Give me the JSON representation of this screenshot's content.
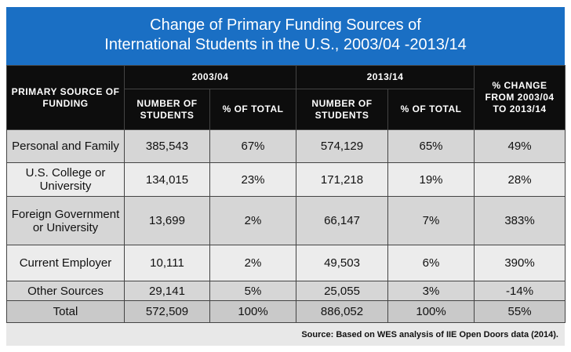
{
  "title": {
    "line1": "Change of Primary Funding Sources of",
    "line2": "International Students in the U.S., 2003/04 -2013/14"
  },
  "headers": {
    "primary_source": "PRIMARY SOURCE OF FUNDING",
    "year1": "2003/04",
    "year2": "2013/14",
    "pct_change": "% CHANGE FROM 2003/04 TO 2013/14",
    "num_students": "NUMBER OF STUDENTS",
    "pct_total": "% OF TOTAL"
  },
  "rows": [
    {
      "source": "Personal and Family",
      "n1": "385,543",
      "p1": "67%",
      "n2": "574,129",
      "p2": "65%",
      "change": "49%"
    },
    {
      "source": "U.S. College or University",
      "n1": "134,015",
      "p1": "23%",
      "n2": "171,218",
      "p2": "19%",
      "change": "28%"
    },
    {
      "source": "Foreign Government or University",
      "n1": "13,699",
      "p1": "2%",
      "n2": "66,147",
      "p2": "7%",
      "change": "383%"
    },
    {
      "source": "Current Employer",
      "n1": "10,111",
      "p1": "2%",
      "n2": "49,503",
      "p2": "6%",
      "change": "390%"
    },
    {
      "source": "Other Sources",
      "n1": "29,141",
      "p1": "5%",
      "n2": "25,055",
      "p2": "3%",
      "change": "-14%"
    },
    {
      "source": "Total",
      "n1": "572,509",
      "p1": "100%",
      "n2": "886,052",
      "p2": "100%",
      "change": "55%"
    }
  ],
  "source_note": "Source: Based on WES analysis of IIE Open Doors data (2014).",
  "colors": {
    "title_bg": "#1a6fc4",
    "header_bg": "#0d0d0d",
    "row_shade": "#d6d6d6",
    "row_light": "#ececec"
  }
}
